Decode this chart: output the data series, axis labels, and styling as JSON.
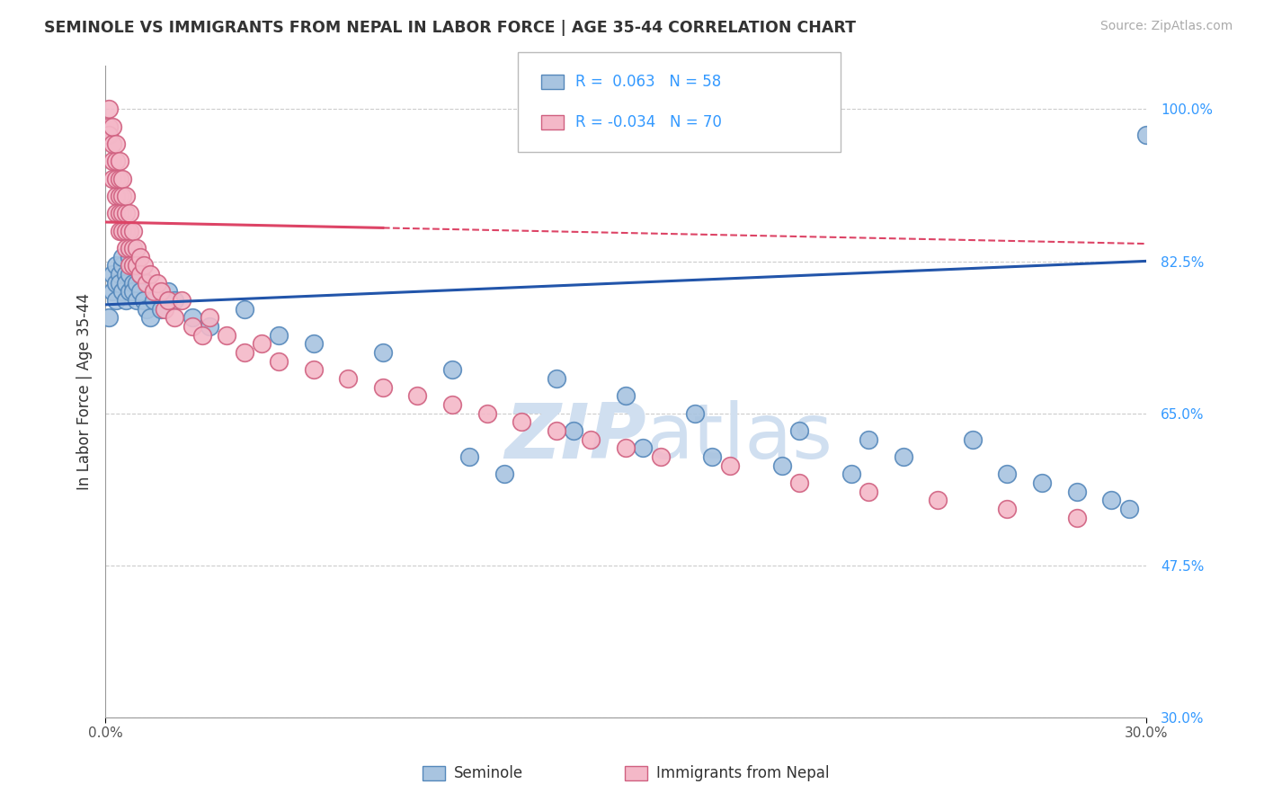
{
  "title": "SEMINOLE VS IMMIGRANTS FROM NEPAL IN LABOR FORCE | AGE 35-44 CORRELATION CHART",
  "source": "Source: ZipAtlas.com",
  "ylabel": "In Labor Force | Age 35-44",
  "xlim": [
    0.0,
    0.3
  ],
  "ylim": [
    0.3,
    1.05
  ],
  "yticks": [
    0.3,
    0.475,
    0.65,
    0.825,
    1.0
  ],
  "ytick_labels": [
    "30.0%",
    "47.5%",
    "65.0%",
    "82.5%",
    "100.0%"
  ],
  "xticks": [
    0.0,
    0.3
  ],
  "xtick_labels": [
    "0.0%",
    "30.0%"
  ],
  "series1_color": "#a8c4e0",
  "series1_edge_color": "#5588bb",
  "series2_color": "#f4b8c8",
  "series2_edge_color": "#d06080",
  "line1_color": "#2255aa",
  "line2_color": "#dd4466",
  "R1": 0.063,
  "N1": 58,
  "R2": -0.034,
  "N2": 70,
  "background_color": "#ffffff",
  "watermark_color": "#d0dff0",
  "series1_x": [
    0.001,
    0.002,
    0.002,
    0.003,
    0.003,
    0.003,
    0.004,
    0.004,
    0.005,
    0.005,
    0.005,
    0.006,
    0.006,
    0.006,
    0.007,
    0.007,
    0.007,
    0.008,
    0.008,
    0.008,
    0.009,
    0.009,
    0.01,
    0.01,
    0.011,
    0.012,
    0.013,
    0.014,
    0.016,
    0.018,
    0.02,
    0.025,
    0.03,
    0.04,
    0.05,
    0.06,
    0.08,
    0.1,
    0.13,
    0.15,
    0.17,
    0.2,
    0.22,
    0.23,
    0.25,
    0.26,
    0.27,
    0.28,
    0.29,
    0.295,
    0.3,
    0.105,
    0.115,
    0.135,
    0.155,
    0.175,
    0.195,
    0.215
  ],
  "series1_y": [
    0.76,
    0.79,
    0.81,
    0.8,
    0.82,
    0.78,
    0.81,
    0.8,
    0.79,
    0.82,
    0.83,
    0.81,
    0.78,
    0.8,
    0.79,
    0.81,
    0.83,
    0.8,
    0.82,
    0.79,
    0.78,
    0.8,
    0.79,
    0.81,
    0.78,
    0.77,
    0.76,
    0.78,
    0.77,
    0.79,
    0.78,
    0.76,
    0.75,
    0.77,
    0.74,
    0.73,
    0.72,
    0.7,
    0.69,
    0.67,
    0.65,
    0.63,
    0.62,
    0.6,
    0.62,
    0.58,
    0.57,
    0.56,
    0.55,
    0.54,
    0.97,
    0.6,
    0.58,
    0.63,
    0.61,
    0.6,
    0.59,
    0.58
  ],
  "series2_x": [
    0.001,
    0.001,
    0.001,
    0.002,
    0.002,
    0.002,
    0.002,
    0.003,
    0.003,
    0.003,
    0.003,
    0.003,
    0.004,
    0.004,
    0.004,
    0.004,
    0.004,
    0.005,
    0.005,
    0.005,
    0.005,
    0.006,
    0.006,
    0.006,
    0.006,
    0.007,
    0.007,
    0.007,
    0.007,
    0.008,
    0.008,
    0.008,
    0.009,
    0.009,
    0.01,
    0.01,
    0.011,
    0.012,
    0.013,
    0.014,
    0.015,
    0.016,
    0.017,
    0.018,
    0.02,
    0.022,
    0.025,
    0.028,
    0.03,
    0.035,
    0.04,
    0.045,
    0.05,
    0.06,
    0.07,
    0.08,
    0.09,
    0.1,
    0.11,
    0.12,
    0.13,
    0.14,
    0.15,
    0.16,
    0.18,
    0.2,
    0.22,
    0.24,
    0.26,
    0.28
  ],
  "series2_y": [
    0.98,
    1.0,
    0.97,
    0.94,
    0.92,
    0.96,
    0.98,
    0.9,
    0.92,
    0.94,
    0.96,
    0.88,
    0.9,
    0.92,
    0.94,
    0.88,
    0.86,
    0.88,
    0.9,
    0.92,
    0.86,
    0.88,
    0.9,
    0.86,
    0.84,
    0.86,
    0.88,
    0.84,
    0.82,
    0.84,
    0.86,
    0.82,
    0.84,
    0.82,
    0.83,
    0.81,
    0.82,
    0.8,
    0.81,
    0.79,
    0.8,
    0.79,
    0.77,
    0.78,
    0.76,
    0.78,
    0.75,
    0.74,
    0.76,
    0.74,
    0.72,
    0.73,
    0.71,
    0.7,
    0.69,
    0.68,
    0.67,
    0.66,
    0.65,
    0.64,
    0.63,
    0.62,
    0.61,
    0.6,
    0.59,
    0.57,
    0.56,
    0.55,
    0.54,
    0.53
  ],
  "line1_intercept": 0.775,
  "line1_slope": 0.167,
  "line2_intercept": 0.87,
  "line2_slope": -0.083,
  "line2_solid_end": 0.08
}
